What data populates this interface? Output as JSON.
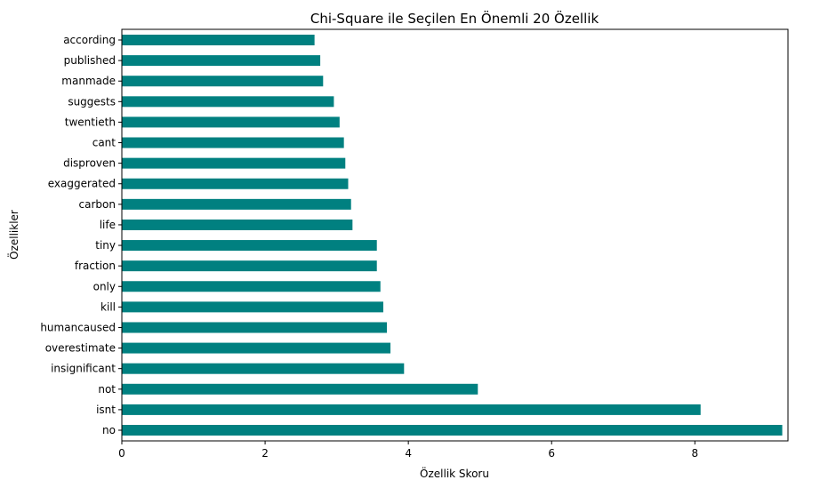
{
  "chart_data": {
    "type": "bar",
    "orientation": "horizontal",
    "title": "Chi-Square ile Seçilen En Önemli 20 Özellik",
    "xlabel": "Özellik Skoru",
    "ylabel": "Özellikler",
    "categories": [
      "no",
      "isnt",
      "not",
      "insignificant",
      "overestimate",
      "humancaused",
      "kill",
      "only",
      "fraction",
      "tiny",
      "life",
      "carbon",
      "exaggerated",
      "disproven",
      "cant",
      "twentieth",
      "suggests",
      "manmade",
      "published",
      "according"
    ],
    "values": [
      9.22,
      8.08,
      4.97,
      3.94,
      3.75,
      3.7,
      3.65,
      3.61,
      3.56,
      3.56,
      3.22,
      3.2,
      3.16,
      3.12,
      3.1,
      3.04,
      2.96,
      2.81,
      2.77,
      2.69
    ],
    "xlim": [
      0,
      9.3
    ],
    "xticks": [
      0,
      2,
      4,
      6,
      8
    ],
    "bar_color": "#008080",
    "grid": false,
    "legend": "none"
  }
}
